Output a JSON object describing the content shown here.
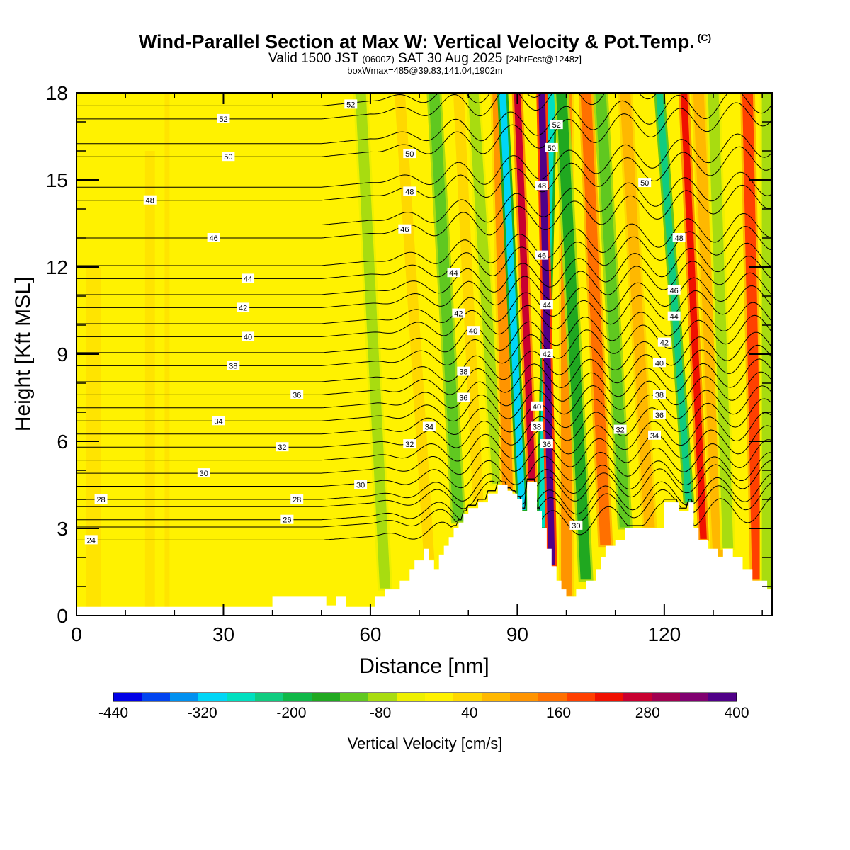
{
  "header": {
    "title": "Wind-Parallel Section at Max W: Vertical Velocity & Pot.Temp.",
    "copyright": "(C)",
    "valid_prefix": "Valid 1500 JST",
    "valid_utc": "(0600Z)",
    "valid_date": "SAT 30 Aug 2025",
    "forecast": "[24hrFcst@1248z]",
    "box_info": "boxWmax=485@39.83,141.04,1902m"
  },
  "chart_data": {
    "type": "heatmap",
    "title": "Wind-Parallel Section at Max W: Vertical Velocity & Pot.Temp.",
    "xlabel": "Distance [nm]",
    "ylabel": "Height [Kft MSL]",
    "xlim": [
      0,
      142
    ],
    "ylim": [
      0,
      18
    ],
    "x_ticks": [
      0,
      30,
      60,
      90,
      120
    ],
    "x_tick_labels": [
      "0",
      "30",
      "60",
      "90",
      "120"
    ],
    "y_ticks": [
      0,
      3,
      6,
      9,
      12,
      15,
      18
    ],
    "y_tick_labels": [
      "0",
      "3",
      "6",
      "9",
      "12",
      "15",
      "18"
    ],
    "colorbar": {
      "title": "Vertical Velocity [cm/s]",
      "levels": [
        -440,
        -400,
        -360,
        -320,
        -280,
        -240,
        -200,
        -160,
        -120,
        -80,
        -40,
        0,
        40,
        80,
        120,
        160,
        200,
        240,
        280,
        320,
        360,
        400
      ],
      "tick_values": [
        -440,
        -320,
        -200,
        -80,
        40,
        160,
        280,
        400
      ],
      "tick_labels": [
        "-440",
        "-320",
        "-200",
        "-80",
        "40",
        "160",
        "280",
        "400"
      ],
      "colors": [
        "#0000e6",
        "#0044f0",
        "#0090f0",
        "#00d6f6",
        "#00e0c0",
        "#10cc80",
        "#10b848",
        "#20a820",
        "#60c820",
        "#a8dc10",
        "#eef000",
        "#fff200",
        "#ffd800",
        "#ffb800",
        "#ff9400",
        "#ff7000",
        "#ff4000",
        "#f01000",
        "#c80030",
        "#a00050",
        "#800070",
        "#500088"
      ]
    },
    "terrain": [
      [
        0,
        0.3
      ],
      [
        40,
        0.3
      ],
      [
        40,
        0.65
      ],
      [
        51,
        0.65
      ],
      [
        51,
        0.35
      ],
      [
        53,
        0.35
      ],
      [
        53,
        0.65
      ],
      [
        55,
        0.65
      ],
      [
        55,
        0.3
      ],
      [
        61,
        0.3
      ],
      [
        61,
        0.65
      ],
      [
        63,
        0.65
      ],
      [
        63,
        0.9
      ],
      [
        66,
        0.9
      ],
      [
        66,
        1.2
      ],
      [
        68,
        1.2
      ],
      [
        68,
        1.6
      ],
      [
        69,
        1.6
      ],
      [
        69,
        1.9
      ],
      [
        71,
        1.9
      ],
      [
        71,
        2.3
      ],
      [
        72,
        2.3
      ],
      [
        72,
        1.9
      ],
      [
        73,
        1.9
      ],
      [
        73,
        1.6
      ],
      [
        74,
        1.6
      ],
      [
        74,
        2.1
      ],
      [
        75,
        2.1
      ],
      [
        75,
        2.4
      ],
      [
        76,
        2.4
      ],
      [
        76,
        2.7
      ],
      [
        77,
        2.7
      ],
      [
        77,
        3.0
      ],
      [
        78,
        3.0
      ],
      [
        78,
        3.2
      ],
      [
        79,
        3.2
      ],
      [
        79,
        3.5
      ],
      [
        80,
        3.5
      ],
      [
        80,
        3.7
      ],
      [
        82,
        3.7
      ],
      [
        82,
        3.9
      ],
      [
        84,
        3.9
      ],
      [
        84,
        4.2
      ],
      [
        86,
        4.2
      ],
      [
        86,
        4.5
      ],
      [
        88,
        4.5
      ],
      [
        88,
        4.3
      ],
      [
        89,
        4.3
      ],
      [
        89,
        4.2
      ],
      [
        90,
        4.2
      ],
      [
        90,
        4.0
      ],
      [
        91,
        4.0
      ],
      [
        91,
        3.6
      ],
      [
        92,
        3.6
      ],
      [
        92,
        4.6
      ],
      [
        94,
        4.6
      ],
      [
        94,
        3.6
      ],
      [
        95,
        3.6
      ],
      [
        95,
        3.0
      ],
      [
        96,
        3.0
      ],
      [
        96,
        2.3
      ],
      [
        97,
        2.3
      ],
      [
        97,
        1.7
      ],
      [
        98,
        1.7
      ],
      [
        98,
        1.2
      ],
      [
        99,
        1.2
      ],
      [
        99,
        0.9
      ],
      [
        100,
        0.9
      ],
      [
        100,
        0.65
      ],
      [
        102,
        0.65
      ],
      [
        102,
        0.9
      ],
      [
        104,
        0.9
      ],
      [
        104,
        1.2
      ],
      [
        106,
        1.2
      ],
      [
        106,
        1.6
      ],
      [
        107,
        1.6
      ],
      [
        107,
        2.0
      ],
      [
        108,
        2.0
      ],
      [
        108,
        2.4
      ],
      [
        110,
        2.4
      ],
      [
        110,
        2.6
      ],
      [
        112,
        2.6
      ],
      [
        112,
        3.0
      ],
      [
        120,
        3.0
      ],
      [
        120,
        3.9
      ],
      [
        123,
        3.9
      ],
      [
        123,
        3.6
      ],
      [
        125,
        3.6
      ],
      [
        125,
        3.9
      ],
      [
        126,
        3.9
      ],
      [
        126,
        3.0
      ],
      [
        127,
        3.0
      ],
      [
        127,
        2.6
      ],
      [
        129,
        2.6
      ],
      [
        129,
        2.3
      ],
      [
        131,
        2.3
      ],
      [
        131,
        2.0
      ],
      [
        132,
        2.0
      ],
      [
        132,
        2.3
      ],
      [
        134,
        2.3
      ],
      [
        134,
        2.0
      ],
      [
        136,
        2.0
      ],
      [
        136,
        1.6
      ],
      [
        138,
        1.6
      ],
      [
        138,
        1.2
      ],
      [
        141,
        1.2
      ],
      [
        141,
        0.9
      ],
      [
        142,
        0.9
      ]
    ],
    "updraft_bands": [
      {
        "x_bottom": 63,
        "x_top": 58,
        "w": -60
      },
      {
        "x_bottom": 72,
        "x_top": 66,
        "w": 60
      },
      {
        "x_bottom": 78,
        "x_top": 73,
        "w": -100
      },
      {
        "x_bottom": 82,
        "x_top": 78,
        "w": 60
      },
      {
        "x_bottom": 86,
        "x_top": 81,
        "w": -80
      },
      {
        "x_bottom": 88,
        "x_top": 86,
        "w": 140
      },
      {
        "x_bottom": 91,
        "x_top": 87,
        "w": -300
      },
      {
        "x_bottom": 93,
        "x_top": 90,
        "w": 280
      },
      {
        "x_bottom": 95,
        "x_top": 97,
        "w": -280
      },
      {
        "x_bottom": 97,
        "x_top": 95,
        "w": 400
      },
      {
        "x_bottom": 100,
        "x_top": 100,
        "w": 120
      },
      {
        "x_bottom": 104,
        "x_top": 99,
        "w": -160
      },
      {
        "x_bottom": 108,
        "x_top": 104,
        "w": 160
      },
      {
        "x_bottom": 112,
        "x_top": 107,
        "w": -120
      },
      {
        "x_bottom": 117,
        "x_top": 112,
        "w": 80
      },
      {
        "x_bottom": 125,
        "x_top": 119,
        "w": -220
      },
      {
        "x_bottom": 128,
        "x_top": 124,
        "w": 240
      },
      {
        "x_bottom": 131,
        "x_top": 127,
        "w": 100
      },
      {
        "x_bottom": 133,
        "x_top": 130,
        "w": -80
      },
      {
        "x_bottom": 139,
        "x_top": 137,
        "w": 200
      },
      {
        "x_bottom": 141,
        "x_top": 141,
        "w": -80
      }
    ],
    "theta_contours": [
      {
        "level": 24,
        "y_base": 2.6,
        "label": "24",
        "label_x": 3
      },
      {
        "level": 26,
        "y_base": 3.3,
        "label": "26",
        "label_x": 43
      },
      {
        "level": 28,
        "y_base": 4.0,
        "label": "28",
        "label_x": 5
      },
      {
        "level": 30,
        "y_base": 4.9,
        "label": "30",
        "label_x": 26
      },
      {
        "level": 32,
        "y_base": 5.8,
        "label": "32",
        "label_x": 42
      },
      {
        "level": 34,
        "y_base": 6.7,
        "label": "34",
        "label_x": 29
      },
      {
        "level": 36,
        "y_base": 7.6,
        "label": "36",
        "label_x": 45
      },
      {
        "level": 38,
        "y_base": 8.6,
        "label": "38",
        "label_x": 32
      },
      {
        "level": 40,
        "y_base": 9.6,
        "label": "40",
        "label_x": 35
      },
      {
        "level": 42,
        "y_base": 10.6,
        "label": "42",
        "label_x": 34
      },
      {
        "level": 44,
        "y_base": 11.6,
        "label": "44",
        "label_x": 35
      },
      {
        "level": 46,
        "y_base": 13.0,
        "label": "46",
        "label_x": 28
      },
      {
        "level": 48,
        "y_base": 14.3,
        "label": "48",
        "label_x": 15
      },
      {
        "level": 50,
        "y_base": 15.8,
        "label": "50",
        "label_x": 31
      },
      {
        "level": 52,
        "y_base": 17.1,
        "label": "52",
        "label_x": 30
      }
    ],
    "extra_contour_labels": [
      {
        "text": "52",
        "x": 56,
        "y": 17.6
      },
      {
        "text": "50",
        "x": 68,
        "y": 15.9
      },
      {
        "text": "48",
        "x": 68,
        "y": 14.6
      },
      {
        "text": "46",
        "x": 67,
        "y": 13.3
      },
      {
        "text": "44",
        "x": 77,
        "y": 11.8
      },
      {
        "text": "42",
        "x": 78,
        "y": 10.4
      },
      {
        "text": "40",
        "x": 81,
        "y": 9.8
      },
      {
        "text": "38",
        "x": 79,
        "y": 8.4
      },
      {
        "text": "36",
        "x": 79,
        "y": 7.5
      },
      {
        "text": "34",
        "x": 72,
        "y": 6.5
      },
      {
        "text": "32",
        "x": 68,
        "y": 5.9
      },
      {
        "text": "30",
        "x": 58,
        "y": 4.5
      },
      {
        "text": "28",
        "x": 45,
        "y": 4.0
      },
      {
        "text": "52",
        "x": 98,
        "y": 16.9
      },
      {
        "text": "50",
        "x": 97,
        "y": 16.1
      },
      {
        "text": "48",
        "x": 95,
        "y": 14.8
      },
      {
        "text": "46",
        "x": 95,
        "y": 12.4
      },
      {
        "text": "44",
        "x": 96,
        "y": 10.7
      },
      {
        "text": "42",
        "x": 96,
        "y": 9.0
      },
      {
        "text": "40",
        "x": 94,
        "y": 7.2
      },
      {
        "text": "38",
        "x": 94,
        "y": 6.5
      },
      {
        "text": "36",
        "x": 96,
        "y": 5.9
      },
      {
        "text": "30",
        "x": 102,
        "y": 3.1
      },
      {
        "text": "32",
        "x": 111,
        "y": 6.4
      },
      {
        "text": "34",
        "x": 118,
        "y": 6.2
      },
      {
        "text": "36",
        "x": 119,
        "y": 6.9
      },
      {
        "text": "38",
        "x": 119,
        "y": 7.6
      },
      {
        "text": "40",
        "x": 119,
        "y": 8.7
      },
      {
        "text": "42",
        "x": 120,
        "y": 9.4
      },
      {
        "text": "44",
        "x": 122,
        "y": 10.3
      },
      {
        "text": "46",
        "x": 122,
        "y": 11.2
      },
      {
        "text": "48",
        "x": 123,
        "y": 13.0
      },
      {
        "text": "50",
        "x": 116,
        "y": 14.9
      }
    ]
  }
}
